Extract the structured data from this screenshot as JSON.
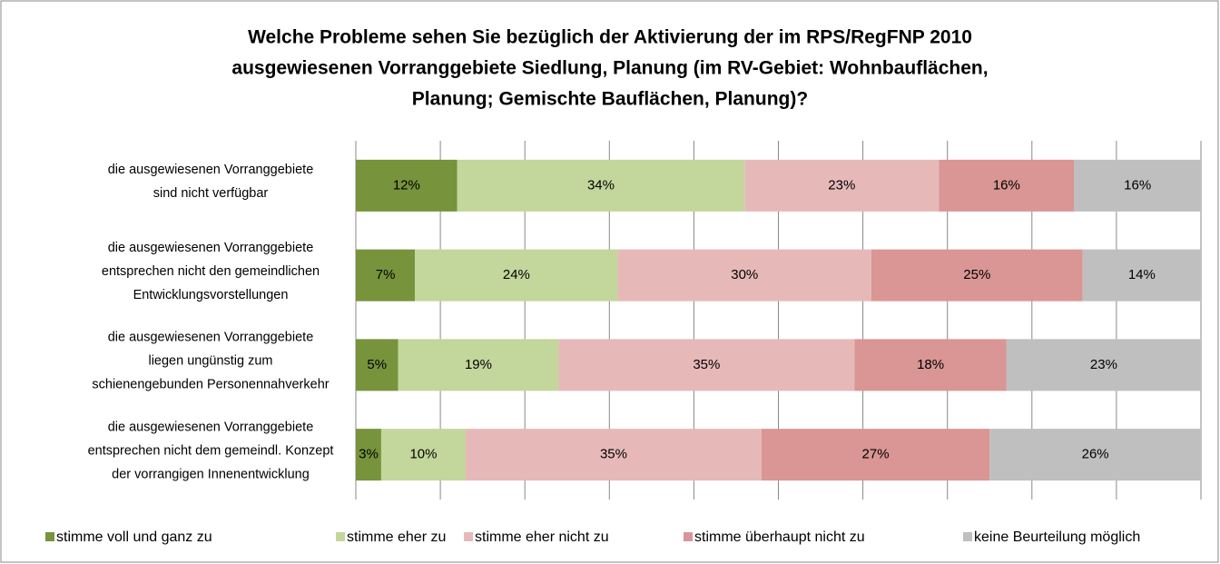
{
  "chart_data": {
    "type": "stacked-barh",
    "title": [
      "Welche Probleme sehen Sie bezüglich der Aktivierung der im RPS/RegFNP 2010",
      "ausgewiesenen Vorranggebiete Siedlung, Planung (im RV-Gebiet: Wohnbauflächen,",
      "Planung; Gemischte Bauflächen, Planung)?"
    ],
    "categories": [
      [
        "die ausgewiesenen Vorranggebiete",
        "sind nicht verfügbar"
      ],
      [
        "die ausgewiesenen Vorranggebiete",
        "entsprechen nicht den gemeindlichen",
        "Entwicklungsvorstellungen"
      ],
      [
        "die ausgewiesenen Vorranggebiete",
        "liegen ungünstig zum",
        "schienengebunden Personennahverkehr"
      ],
      [
        "die ausgewiesenen Vorranggebiete",
        "entsprechen nicht dem gemeindl. Konzept",
        "der vorrangigen Innenentwicklung"
      ]
    ],
    "series": [
      {
        "name": "stimme voll und ganz zu",
        "color": "#77933c",
        "values": [
          12,
          7,
          5,
          3
        ],
        "value_labels": [
          "12%",
          "7%",
          "5%",
          "3%"
        ]
      },
      {
        "name": "stimme eher zu",
        "color": "#c3d69b",
        "values": [
          34,
          24,
          19,
          10
        ],
        "value_labels": [
          "34%",
          "24%",
          "19%",
          "10%"
        ]
      },
      {
        "name": "stimme eher nicht zu",
        "color": "#e6b9b8",
        "values": [
          23,
          30,
          35,
          35
        ],
        "value_labels": [
          "23%",
          "30%",
          "35%",
          "35%"
        ]
      },
      {
        "name": "stimme überhaupt nicht zu",
        "color": "#d99694",
        "values": [
          16,
          25,
          18,
          27
        ],
        "value_labels": [
          "16%",
          "25%",
          "18%",
          "27%"
        ]
      },
      {
        "name": "keine Beurteilung möglich",
        "color": "#bfbfbf",
        "values": [
          16,
          14,
          23,
          26
        ],
        "value_labels": [
          "16%",
          "14%",
          "23%",
          "26%"
        ]
      }
    ],
    "xlim": [
      0,
      100
    ],
    "xticks": [
      0,
      10,
      20,
      30,
      40,
      50,
      60,
      70,
      80,
      90,
      100
    ],
    "grid": true,
    "legend": "bottom"
  }
}
